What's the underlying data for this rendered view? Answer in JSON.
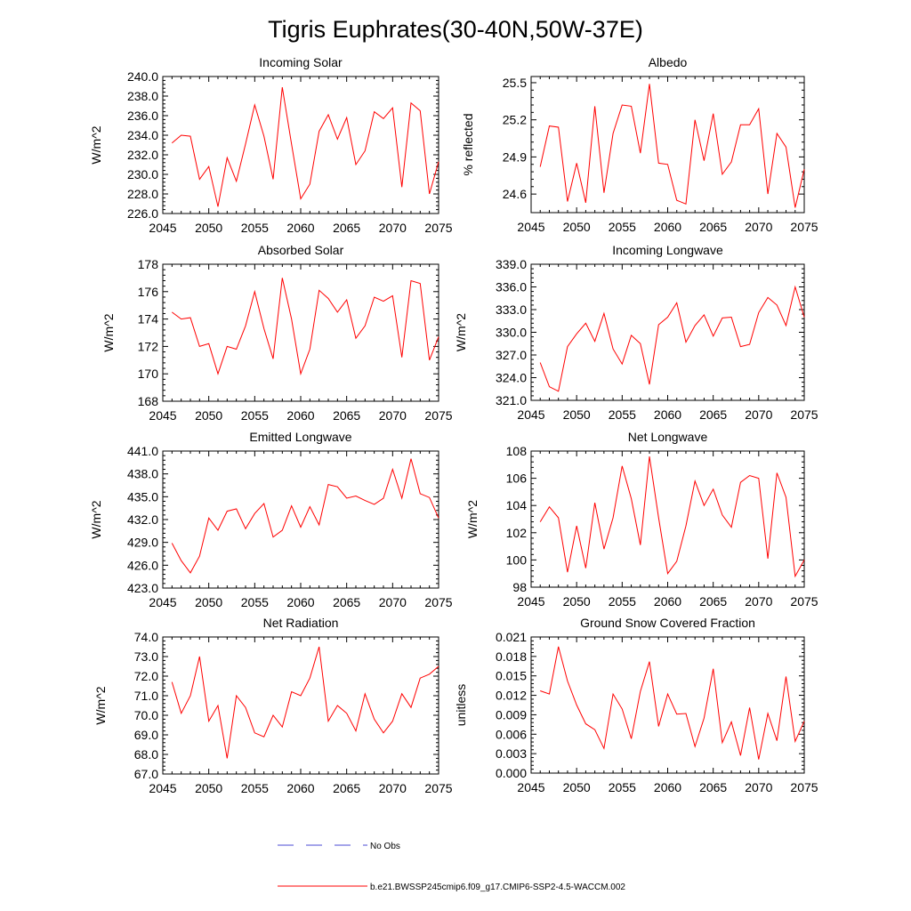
{
  "figure": {
    "title": "Tigris Euphrates(30-40N,50W-37E)",
    "colors": {
      "model_line": "#ff0000",
      "obs_line": "#4b4bd6",
      "axis": "#000000"
    },
    "legend": {
      "obs_label": "No Obs",
      "model_label": "b.e21.BWSSP245cmip6.f09_g17.CMIP6-SSP2-4.5-WACCM.002"
    }
  },
  "chart_data": [
    {
      "type": "line",
      "title": "Incoming Solar",
      "ylabel": "W/m^2",
      "xlim": [
        2045,
        2075
      ],
      "ylim": [
        226,
        240
      ],
      "xticks": [
        2045,
        2050,
        2055,
        2060,
        2065,
        2070,
        2075
      ],
      "yticks": [
        "226.0",
        "228.0",
        "230.0",
        "232.0",
        "234.0",
        "236.0",
        "238.0",
        "240.0"
      ],
      "x": [
        2046,
        2047,
        2048,
        2049,
        2050,
        2051,
        2052,
        2053,
        2054,
        2055,
        2056,
        2057,
        2058,
        2059,
        2060,
        2061,
        2062,
        2063,
        2064,
        2065,
        2066,
        2067,
        2068,
        2069,
        2070,
        2071,
        2072,
        2073,
        2074,
        2075
      ],
      "y": [
        233.2,
        234.0,
        233.9,
        229.5,
        230.8,
        226.7,
        231.7,
        229.3,
        233.1,
        237.1,
        233.9,
        229.5,
        238.9,
        233.1,
        227.5,
        229.0,
        234.4,
        236.1,
        233.6,
        235.8,
        231.0,
        232.4,
        236.4,
        235.7,
        236.8,
        228.7,
        237.3,
        236.5,
        228.0,
        231.3
      ]
    },
    {
      "type": "line",
      "title": "Albedo",
      "ylabel": "% reflected",
      "xlim": [
        2045,
        2075
      ],
      "ylim": [
        24.45,
        25.55
      ],
      "xticks": [
        2045,
        2050,
        2055,
        2060,
        2065,
        2070,
        2075
      ],
      "yticks": [
        "24.6",
        "24.9",
        "25.2",
        "25.5"
      ],
      "x": [
        2046,
        2047,
        2048,
        2049,
        2050,
        2051,
        2052,
        2053,
        2054,
        2055,
        2056,
        2057,
        2058,
        2059,
        2060,
        2061,
        2062,
        2063,
        2064,
        2065,
        2066,
        2067,
        2068,
        2069,
        2070,
        2071,
        2072,
        2073,
        2074,
        2075
      ],
      "y": [
        24.82,
        25.15,
        25.14,
        24.54,
        24.85,
        24.53,
        25.31,
        24.61,
        25.09,
        25.32,
        25.31,
        24.93,
        25.49,
        24.85,
        24.84,
        24.55,
        24.52,
        25.2,
        24.87,
        25.25,
        24.76,
        24.86,
        25.16,
        25.16,
        25.29,
        24.6,
        25.09,
        24.98,
        24.49,
        24.8
      ]
    },
    {
      "type": "line",
      "title": "Absorbed Solar",
      "ylabel": "W/m^2",
      "xlim": [
        2045,
        2075
      ],
      "ylim": [
        168,
        178
      ],
      "xticks": [
        2045,
        2050,
        2055,
        2060,
        2065,
        2070,
        2075
      ],
      "yticks": [
        "168",
        "170",
        "172",
        "174",
        "176",
        "178"
      ],
      "x": [
        2046,
        2047,
        2048,
        2049,
        2050,
        2051,
        2052,
        2053,
        2054,
        2055,
        2056,
        2057,
        2058,
        2059,
        2060,
        2061,
        2062,
        2063,
        2064,
        2065,
        2066,
        2067,
        2068,
        2069,
        2070,
        2071,
        2072,
        2073,
        2074,
        2075
      ],
      "y": [
        174.5,
        174.0,
        174.1,
        172.0,
        172.2,
        170.0,
        172.0,
        171.8,
        173.5,
        176.0,
        173.3,
        171.1,
        177.0,
        174.0,
        170.0,
        171.8,
        176.1,
        175.5,
        174.5,
        175.4,
        172.6,
        173.5,
        175.6,
        175.3,
        175.7,
        171.2,
        176.8,
        176.6,
        171.0,
        172.7
      ]
    },
    {
      "type": "line",
      "title": "Incoming Longwave",
      "ylabel": "W/m^2",
      "xlim": [
        2045,
        2075
      ],
      "ylim": [
        321,
        339
      ],
      "xticks": [
        2045,
        2050,
        2055,
        2060,
        2065,
        2070,
        2075
      ],
      "yticks": [
        "321.0",
        "324.0",
        "327.0",
        "330.0",
        "333.0",
        "336.0",
        "339.0"
      ],
      "x": [
        2046,
        2047,
        2048,
        2049,
        2050,
        2051,
        2052,
        2053,
        2054,
        2055,
        2056,
        2057,
        2058,
        2059,
        2060,
        2061,
        2062,
        2063,
        2064,
        2065,
        2066,
        2067,
        2068,
        2069,
        2070,
        2071,
        2072,
        2073,
        2074,
        2075
      ],
      "y": [
        326.0,
        322.8,
        322.2,
        328.1,
        329.8,
        331.2,
        328.8,
        332.5,
        327.8,
        325.8,
        329.6,
        328.5,
        323.1,
        331.0,
        332.0,
        333.9,
        328.7,
        330.9,
        332.3,
        329.5,
        331.9,
        332.0,
        328.1,
        328.4,
        332.6,
        334.6,
        333.6,
        330.9,
        336.0,
        332.0
      ]
    },
    {
      "type": "line",
      "title": "Emitted Longwave",
      "ylabel": "W/m^2",
      "xlim": [
        2045,
        2075
      ],
      "ylim": [
        423,
        441
      ],
      "xticks": [
        2045,
        2050,
        2055,
        2060,
        2065,
        2070,
        2075
      ],
      "yticks": [
        "423.0",
        "426.0",
        "429.0",
        "432.0",
        "435.0",
        "438.0",
        "441.0"
      ],
      "x": [
        2046,
        2047,
        2048,
        2049,
        2050,
        2051,
        2052,
        2053,
        2054,
        2055,
        2056,
        2057,
        2058,
        2059,
        2060,
        2061,
        2062,
        2063,
        2064,
        2065,
        2066,
        2067,
        2068,
        2069,
        2070,
        2071,
        2072,
        2073,
        2074,
        2075
      ],
      "y": [
        428.9,
        426.6,
        425.0,
        427.2,
        432.2,
        430.6,
        433.1,
        433.4,
        430.8,
        432.8,
        434.1,
        429.7,
        430.6,
        433.8,
        431.0,
        433.7,
        431.3,
        436.6,
        436.3,
        434.8,
        435.1,
        434.5,
        434.0,
        434.8,
        438.6,
        434.8,
        440.0,
        435.4,
        434.9,
        432.2
      ]
    },
    {
      "type": "line",
      "title": "Net Longwave",
      "ylabel": "W/m^2",
      "xlim": [
        2045,
        2075
      ],
      "ylim": [
        98,
        108
      ],
      "xticks": [
        2045,
        2050,
        2055,
        2060,
        2065,
        2070,
        2075
      ],
      "yticks": [
        "98",
        "100",
        "102",
        "104",
        "106",
        "108"
      ],
      "x": [
        2046,
        2047,
        2048,
        2049,
        2050,
        2051,
        2052,
        2053,
        2054,
        2055,
        2056,
        2057,
        2058,
        2059,
        2060,
        2061,
        2062,
        2063,
        2064,
        2065,
        2066,
        2067,
        2068,
        2069,
        2070,
        2071,
        2072,
        2073,
        2074,
        2075
      ],
      "y": [
        102.8,
        103.9,
        103.1,
        99.1,
        102.5,
        99.4,
        104.2,
        100.8,
        103.1,
        106.9,
        104.5,
        101.1,
        107.6,
        103.1,
        99.0,
        99.9,
        102.5,
        105.8,
        104.0,
        105.2,
        103.3,
        102.4,
        105.7,
        106.2,
        106.0,
        100.1,
        106.4,
        104.6,
        98.8,
        100.0
      ]
    },
    {
      "type": "line",
      "title": "Net Radiation",
      "ylabel": "W/m^2",
      "xlim": [
        2045,
        2075
      ],
      "ylim": [
        67,
        74
      ],
      "xticks": [
        2045,
        2050,
        2055,
        2060,
        2065,
        2070,
        2075
      ],
      "yticks": [
        "67.0",
        "68.0",
        "69.0",
        "70.0",
        "71.0",
        "72.0",
        "73.0",
        "74.0"
      ],
      "x": [
        2046,
        2047,
        2048,
        2049,
        2050,
        2051,
        2052,
        2053,
        2054,
        2055,
        2056,
        2057,
        2058,
        2059,
        2060,
        2061,
        2062,
        2063,
        2064,
        2065,
        2066,
        2067,
        2068,
        2069,
        2070,
        2071,
        2072,
        2073,
        2074,
        2075
      ],
      "y": [
        71.7,
        70.1,
        71.0,
        73.0,
        69.7,
        70.5,
        67.8,
        71.0,
        70.4,
        69.1,
        68.9,
        70.0,
        69.4,
        71.2,
        71.0,
        71.9,
        73.5,
        69.7,
        70.5,
        70.1,
        69.2,
        71.1,
        69.8,
        69.1,
        69.7,
        71.1,
        70.4,
        71.9,
        72.1,
        72.5
      ]
    },
    {
      "type": "line",
      "title": "Ground Snow Covered Fraction",
      "ylabel": "unitless",
      "xlim": [
        2045,
        2075
      ],
      "ylim": [
        0,
        0.021
      ],
      "xticks": [
        2045,
        2050,
        2055,
        2060,
        2065,
        2070,
        2075
      ],
      "yticks": [
        "0.000",
        "0.003",
        "0.006",
        "0.009",
        "0.012",
        "0.015",
        "0.018",
        "0.021"
      ],
      "x": [
        2046,
        2047,
        2048,
        2049,
        2050,
        2051,
        2052,
        2053,
        2054,
        2055,
        2056,
        2057,
        2058,
        2059,
        2060,
        2061,
        2062,
        2063,
        2064,
        2065,
        2066,
        2067,
        2068,
        2069,
        2070,
        2071,
        2072,
        2073,
        2074,
        2075
      ],
      "y": [
        0.0127,
        0.0122,
        0.0195,
        0.0142,
        0.0105,
        0.0076,
        0.0067,
        0.0038,
        0.0122,
        0.0099,
        0.0053,
        0.0126,
        0.0172,
        0.0072,
        0.0122,
        0.0091,
        0.0092,
        0.0041,
        0.0085,
        0.0161,
        0.0047,
        0.0079,
        0.0027,
        0.0101,
        0.0021,
        0.0092,
        0.005,
        0.0149,
        0.0049,
        0.008
      ]
    }
  ]
}
